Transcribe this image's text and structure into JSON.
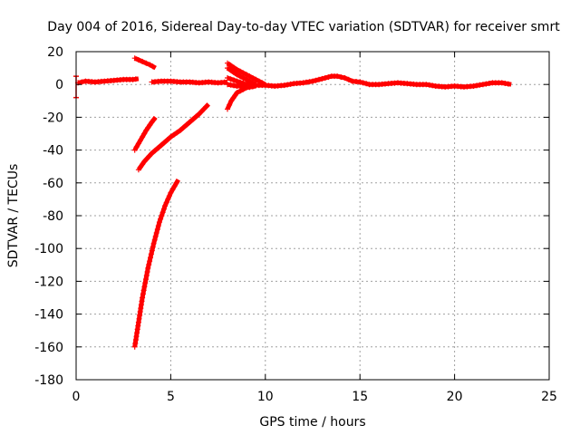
{
  "chart_data": {
    "type": "scatter",
    "title": "Day 004 of 2016, Sidereal Day-to-day VTEC variation (SDTVAR) for receiver smrt",
    "xlabel": "GPS time / hours",
    "ylabel": "SDTVAR / TECUs",
    "xlim": [
      0,
      25
    ],
    "ylim": [
      -180,
      20
    ],
    "x_ticks": [
      0,
      5,
      10,
      15,
      20,
      25
    ],
    "y_ticks": [
      20,
      0,
      -20,
      -40,
      -60,
      -80,
      -100,
      -120,
      -140,
      -160,
      -180
    ],
    "grid": true,
    "legend": "none",
    "series_color": "#ff0000",
    "series": [
      {
        "points": [
          [
            0.1,
            1
          ],
          [
            0.5,
            2
          ],
          [
            1.0,
            1.5
          ],
          [
            1.5,
            2
          ],
          [
            2.0,
            2.5
          ],
          [
            2.5,
            3
          ],
          [
            3.0,
            3
          ],
          [
            3.3,
            3.5
          ]
        ]
      },
      {
        "points": [
          [
            3.1,
            16
          ],
          [
            3.5,
            14
          ],
          [
            3.9,
            12
          ],
          [
            4.2,
            10
          ]
        ]
      },
      {
        "points": [
          [
            4.0,
            1.5
          ],
          [
            4.5,
            2
          ],
          [
            5.0,
            2
          ],
          [
            5.5,
            1.5
          ],
          [
            6.0,
            1.5
          ],
          [
            6.5,
            1
          ],
          [
            7.0,
            1.5
          ],
          [
            7.5,
            1
          ],
          [
            8.0,
            1.5
          ]
        ]
      },
      {
        "points": [
          [
            8.0,
            0
          ],
          [
            8.5,
            -1
          ],
          [
            9.0,
            -1
          ],
          [
            9.5,
            -0.5
          ],
          [
            10.0,
            -0.5
          ],
          [
            10.5,
            -1
          ],
          [
            11.0,
            -0.5
          ],
          [
            11.5,
            0.5
          ],
          [
            12.0,
            1
          ],
          [
            12.5,
            2
          ],
          [
            13.0,
            3.5
          ],
          [
            13.5,
            5
          ],
          [
            13.8,
            5
          ],
          [
            14.2,
            4
          ],
          [
            14.6,
            2
          ],
          [
            15.0,
            1.5
          ],
          [
            15.5,
            0
          ],
          [
            16.0,
            0
          ],
          [
            16.5,
            0.5
          ],
          [
            17.0,
            1
          ],
          [
            17.5,
            0.5
          ],
          [
            18.0,
            0
          ],
          [
            18.5,
            0
          ],
          [
            19.0,
            -1
          ],
          [
            19.5,
            -1.5
          ],
          [
            20.0,
            -1
          ],
          [
            20.5,
            -1.5
          ],
          [
            21.0,
            -1
          ],
          [
            21.5,
            0
          ],
          [
            22.0,
            1
          ],
          [
            22.5,
            1
          ],
          [
            23.0,
            0
          ]
        ]
      },
      {
        "points": [
          [
            8.0,
            13
          ],
          [
            8.5,
            9
          ],
          [
            9.0,
            6
          ],
          [
            9.5,
            3
          ],
          [
            10.0,
            0
          ]
        ]
      },
      {
        "points": [
          [
            8.0,
            10
          ],
          [
            8.5,
            6
          ],
          [
            9.0,
            3
          ],
          [
            9.5,
            0
          ]
        ]
      },
      {
        "points": [
          [
            8.0,
            4
          ],
          [
            8.5,
            2
          ],
          [
            9.0,
            0
          ],
          [
            9.5,
            -1
          ]
        ]
      },
      {
        "points": [
          [
            8.0,
            -15
          ],
          [
            8.2,
            -10
          ],
          [
            8.5,
            -5
          ],
          [
            9.0,
            -2
          ],
          [
            9.5,
            -1
          ]
        ]
      },
      {
        "points": [
          [
            3.1,
            -40
          ],
          [
            3.4,
            -34
          ],
          [
            3.7,
            -28
          ],
          [
            4.0,
            -23
          ],
          [
            4.2,
            -20
          ]
        ]
      },
      {
        "points": [
          [
            3.3,
            -52
          ],
          [
            3.6,
            -47
          ],
          [
            4.0,
            -42
          ],
          [
            4.5,
            -37
          ],
          [
            5.0,
            -32
          ],
          [
            5.5,
            -28
          ],
          [
            6.0,
            -23
          ],
          [
            6.5,
            -18
          ],
          [
            7.0,
            -12
          ]
        ]
      },
      {
        "points": [
          [
            3.1,
            -160
          ],
          [
            3.3,
            -145
          ],
          [
            3.5,
            -130
          ],
          [
            3.8,
            -112
          ],
          [
            4.1,
            -97
          ],
          [
            4.4,
            -84
          ],
          [
            4.7,
            -74
          ],
          [
            5.0,
            -66
          ],
          [
            5.4,
            -58
          ]
        ]
      }
    ]
  }
}
